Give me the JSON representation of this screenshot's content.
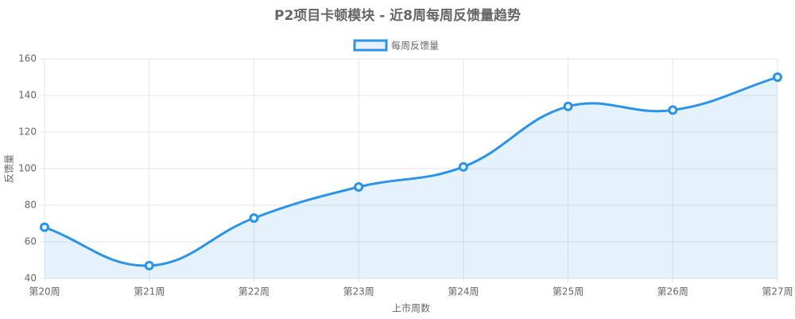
{
  "chart_data": {
    "type": "line",
    "title": "P2项目卡顿模块 - 近8周每周反馈量趋势",
    "x_label": "上市周数",
    "y_label": "反馈量",
    "categories": [
      "第20周",
      "第21周",
      "第22周",
      "第23周",
      "第24周",
      "第25周",
      "第26周",
      "第27周"
    ],
    "series": [
      {
        "name": "每周反馈量",
        "color": "#2b93e8",
        "values": [
          68,
          47,
          73,
          90,
          101,
          134,
          132,
          150
        ]
      }
    ],
    "ylim": [
      40,
      160
    ],
    "yticks": [
      40,
      60,
      80,
      100,
      120,
      140,
      160
    ],
    "grid": true,
    "legend": "top"
  }
}
